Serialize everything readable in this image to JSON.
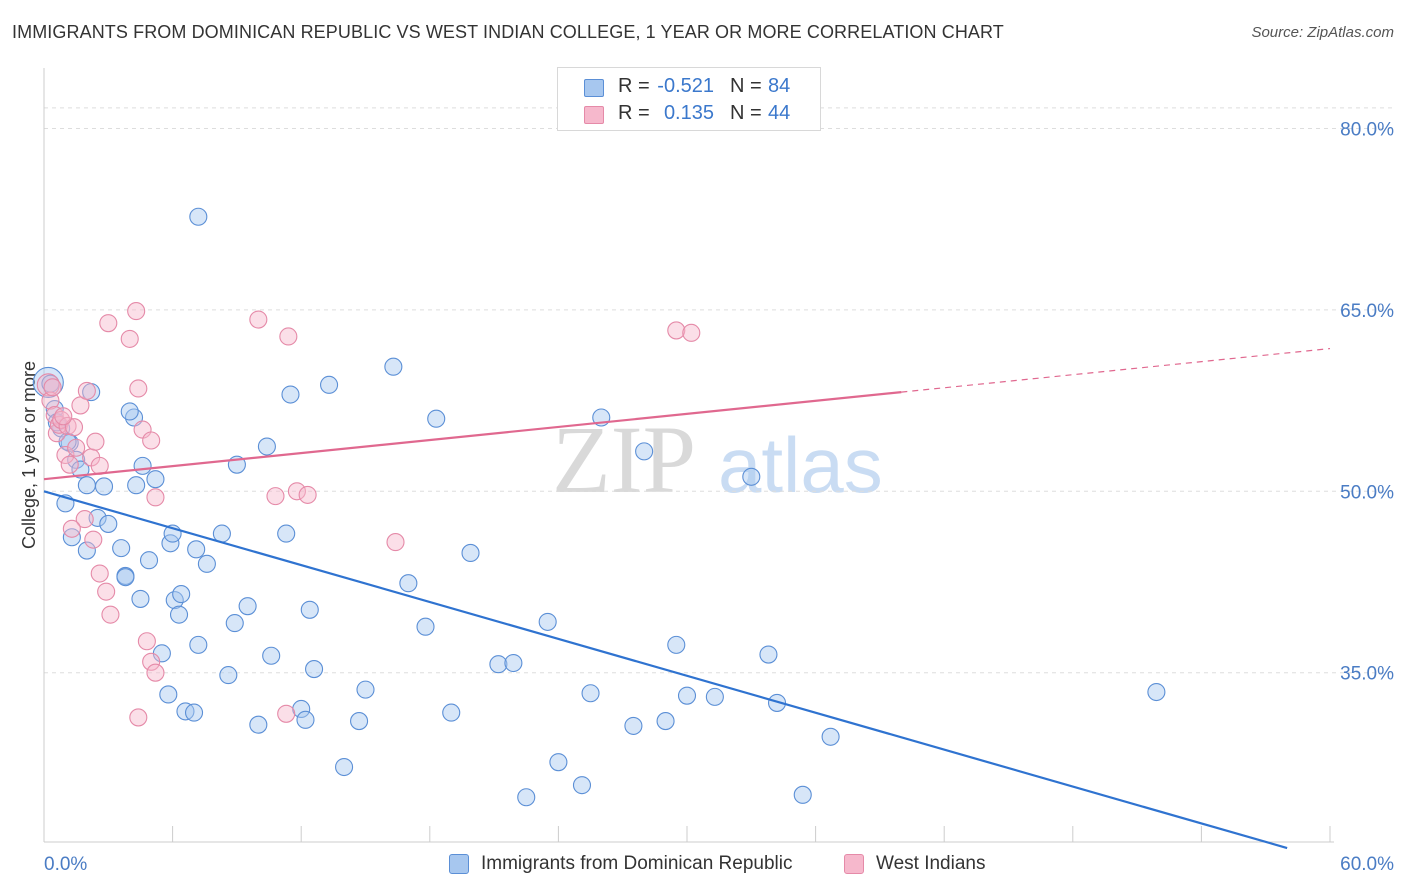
{
  "title": "IMMIGRANTS FROM DOMINICAN REPUBLIC VS WEST INDIAN COLLEGE, 1 YEAR OR MORE CORRELATION CHART",
  "source": "Source: ZipAtlas.com",
  "watermark": {
    "zip": "ZIP",
    "atlas": "atlas"
  },
  "stats": [
    {
      "r_label": "R =",
      "r_value": "-0.521",
      "n_label": "N =",
      "n_value": "84",
      "color": "#a7c7ef"
    },
    {
      "r_label": "R =",
      "r_value": "0.135",
      "n_label": "N =",
      "n_value": "44",
      "color": "#f6b8cc"
    }
  ],
  "legend": [
    {
      "label": "Immigrants from Dominican Republic",
      "color": "#a7c7ef"
    },
    {
      "label": "West Indians",
      "color": "#f6b8cc"
    }
  ],
  "chart_data": {
    "type": "scatter",
    "ylabel": "College, 1 year or more",
    "xlim": [
      0,
      60
    ],
    "ylim": [
      21,
      85
    ],
    "x_tick_labels": [
      "0.0%",
      "60.0%"
    ],
    "y_ticks": [
      35,
      50,
      65,
      80
    ],
    "y_tick_labels": [
      "35.0%",
      "50.0%",
      "65.0%",
      "80.0%"
    ],
    "grid": true,
    "legend_position": "bottom-center",
    "colors": {
      "blue_fill": "#a7c7ef",
      "blue_stroke": "#5b8fd6",
      "blue_line": "#2f73d0",
      "pink_fill": "#f6b8cc",
      "pink_stroke": "#e58aa8",
      "pink_line": "#e0688f",
      "tick_text": "#4a7cc4",
      "grid": "#dddddd"
    },
    "series": [
      {
        "name": "Immigrants from Dominican Republic",
        "trend": {
          "x1": 0,
          "y1": 50.0,
          "x2": 58.0,
          "y2": 20.5
        },
        "points": [
          [
            0.2,
            59.0
          ],
          [
            0.5,
            56.8
          ],
          [
            0.8,
            55.2
          ],
          [
            1.0,
            49.0
          ],
          [
            1.2,
            54.0
          ],
          [
            1.5,
            52.6
          ],
          [
            1.7,
            51.8
          ],
          [
            2.0,
            50.5
          ],
          [
            1.3,
            46.2
          ],
          [
            2.0,
            45.1
          ],
          [
            2.5,
            47.8
          ],
          [
            2.8,
            50.4
          ],
          [
            3.0,
            47.3
          ],
          [
            3.6,
            45.3
          ],
          [
            3.8,
            43.0
          ],
          [
            4.3,
            50.5
          ],
          [
            4.6,
            52.1
          ],
          [
            4.9,
            44.3
          ],
          [
            4.5,
            41.1
          ],
          [
            5.2,
            51.0
          ],
          [
            5.5,
            36.6
          ],
          [
            5.8,
            33.2
          ],
          [
            5.9,
            45.7
          ],
          [
            6.0,
            46.5
          ],
          [
            6.1,
            41.0
          ],
          [
            6.3,
            39.8
          ],
          [
            6.4,
            41.5
          ],
          [
            6.6,
            31.8
          ],
          [
            7.0,
            31.7
          ],
          [
            7.2,
            37.3
          ],
          [
            7.6,
            44.0
          ],
          [
            7.1,
            45.2
          ],
          [
            8.3,
            46.5
          ],
          [
            8.6,
            34.8
          ],
          [
            8.9,
            39.1
          ],
          [
            9.0,
            52.2
          ],
          [
            9.5,
            40.5
          ],
          [
            10.0,
            30.7
          ],
          [
            10.4,
            53.7
          ],
          [
            10.6,
            36.4
          ],
          [
            11.3,
            46.5
          ],
          [
            11.5,
            58.0
          ],
          [
            12.0,
            32.0
          ],
          [
            12.2,
            31.1
          ],
          [
            12.4,
            40.2
          ],
          [
            12.6,
            35.3
          ],
          [
            13.3,
            58.8
          ],
          [
            4.2,
            56.1
          ],
          [
            4.0,
            56.6
          ],
          [
            2.2,
            58.2
          ],
          [
            3.8,
            42.9
          ],
          [
            7.2,
            72.7
          ],
          [
            14.0,
            27.2
          ],
          [
            14.7,
            31.0
          ],
          [
            15.0,
            33.6
          ],
          [
            16.3,
            60.3
          ],
          [
            17.0,
            42.4
          ],
          [
            17.8,
            38.8
          ],
          [
            18.3,
            56.0
          ],
          [
            19.0,
            31.7
          ],
          [
            19.9,
            44.9
          ],
          [
            21.2,
            35.7
          ],
          [
            21.9,
            35.8
          ],
          [
            22.5,
            24.7
          ],
          [
            23.5,
            39.2
          ],
          [
            24.0,
            27.6
          ],
          [
            25.1,
            25.7
          ],
          [
            25.5,
            33.3
          ],
          [
            26.0,
            56.1
          ],
          [
            27.5,
            30.6
          ],
          [
            28.0,
            53.3
          ],
          [
            29.0,
            31.0
          ],
          [
            29.5,
            37.3
          ],
          [
            30.0,
            33.1
          ],
          [
            31.3,
            33.0
          ],
          [
            33.0,
            51.2
          ],
          [
            33.8,
            36.5
          ],
          [
            34.2,
            32.5
          ],
          [
            35.4,
            24.9
          ],
          [
            36.7,
            29.7
          ],
          [
            51.9,
            33.4
          ],
          [
            0.3,
            58.9
          ],
          [
            0.6,
            55.7
          ],
          [
            1.1,
            54.1
          ]
        ]
      },
      {
        "name": "West Indians",
        "trend": {
          "x1": 0,
          "y1": 51.0,
          "x2": 40.0,
          "y2": 58.2,
          "dash_to_x": 60.0,
          "dash_to_y": 61.8
        },
        "points": [
          [
            0.2,
            58.8
          ],
          [
            0.3,
            57.5
          ],
          [
            0.5,
            56.3
          ],
          [
            0.6,
            54.8
          ],
          [
            0.7,
            55.5
          ],
          [
            0.8,
            55.9
          ],
          [
            1.0,
            53.0
          ],
          [
            1.1,
            55.4
          ],
          [
            1.2,
            52.2
          ],
          [
            1.4,
            55.3
          ],
          [
            1.5,
            53.6
          ],
          [
            1.7,
            57.1
          ],
          [
            2.0,
            58.3
          ],
          [
            2.2,
            52.8
          ],
          [
            2.4,
            54.1
          ],
          [
            2.6,
            52.1
          ],
          [
            1.9,
            47.7
          ],
          [
            2.3,
            46.0
          ],
          [
            2.6,
            43.2
          ],
          [
            2.9,
            41.7
          ],
          [
            3.1,
            39.8
          ],
          [
            3.0,
            63.9
          ],
          [
            4.0,
            62.6
          ],
          [
            4.3,
            64.9
          ],
          [
            4.4,
            58.5
          ],
          [
            4.6,
            55.1
          ],
          [
            5.0,
            54.2
          ],
          [
            5.2,
            49.5
          ],
          [
            4.8,
            37.6
          ],
          [
            5.0,
            35.9
          ],
          [
            5.2,
            35.0
          ],
          [
            4.4,
            31.3
          ],
          [
            10.0,
            64.2
          ],
          [
            11.4,
            62.8
          ],
          [
            11.8,
            50.0
          ],
          [
            12.3,
            49.7
          ],
          [
            10.8,
            49.6
          ],
          [
            11.3,
            31.6
          ],
          [
            16.4,
            45.8
          ],
          [
            29.5,
            63.3
          ],
          [
            30.2,
            63.1
          ],
          [
            0.4,
            58.6
          ],
          [
            0.9,
            56.2
          ],
          [
            1.3,
            46.9
          ]
        ]
      }
    ]
  }
}
